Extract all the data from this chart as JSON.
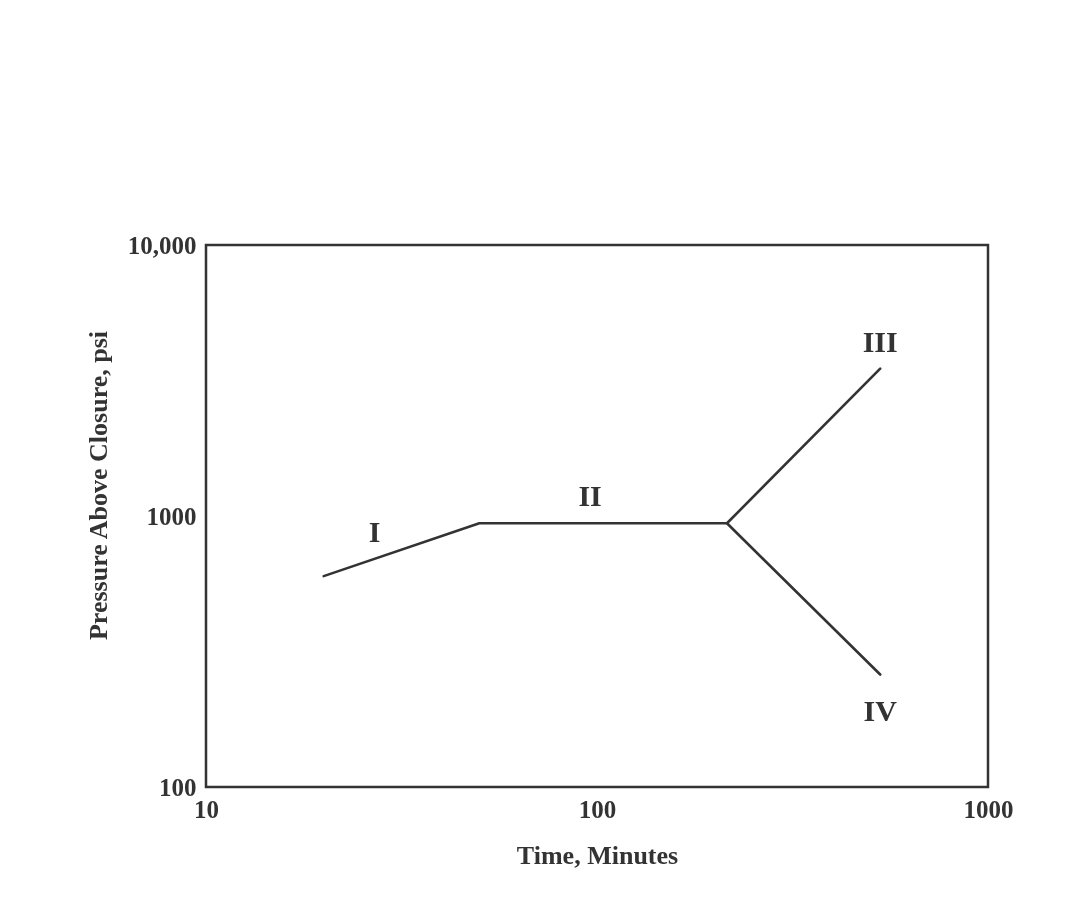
{
  "chart_data": {
    "type": "line",
    "xlabel": "Time, Minutes",
    "ylabel": "Pressure Above Closure, psi",
    "log": "xy",
    "xlim": [
      10,
      1000
    ],
    "ylim": [
      100,
      10000
    ],
    "xticks": [
      10,
      100,
      1000
    ],
    "yticks": [
      100,
      1000,
      {
        "value": 10000,
        "label": "10,000"
      }
    ],
    "series": [
      {
        "color": "#333333",
        "x": [
          20,
          50,
          215,
          530
        ],
        "values": [
          600,
          940,
          940,
          3500
        ]
      },
      {
        "color": "#333333",
        "x": [
          215,
          530
        ],
        "values": [
          940,
          260
        ]
      }
    ],
    "annotations": [
      {
        "text": "I",
        "x": 27,
        "y": 695
      },
      {
        "text": "II",
        "x": 96,
        "y": 940
      },
      {
        "text": "III",
        "x": 530,
        "y": 3500
      },
      {
        "text": "IV",
        "x": 530,
        "y": 260
      }
    ]
  }
}
